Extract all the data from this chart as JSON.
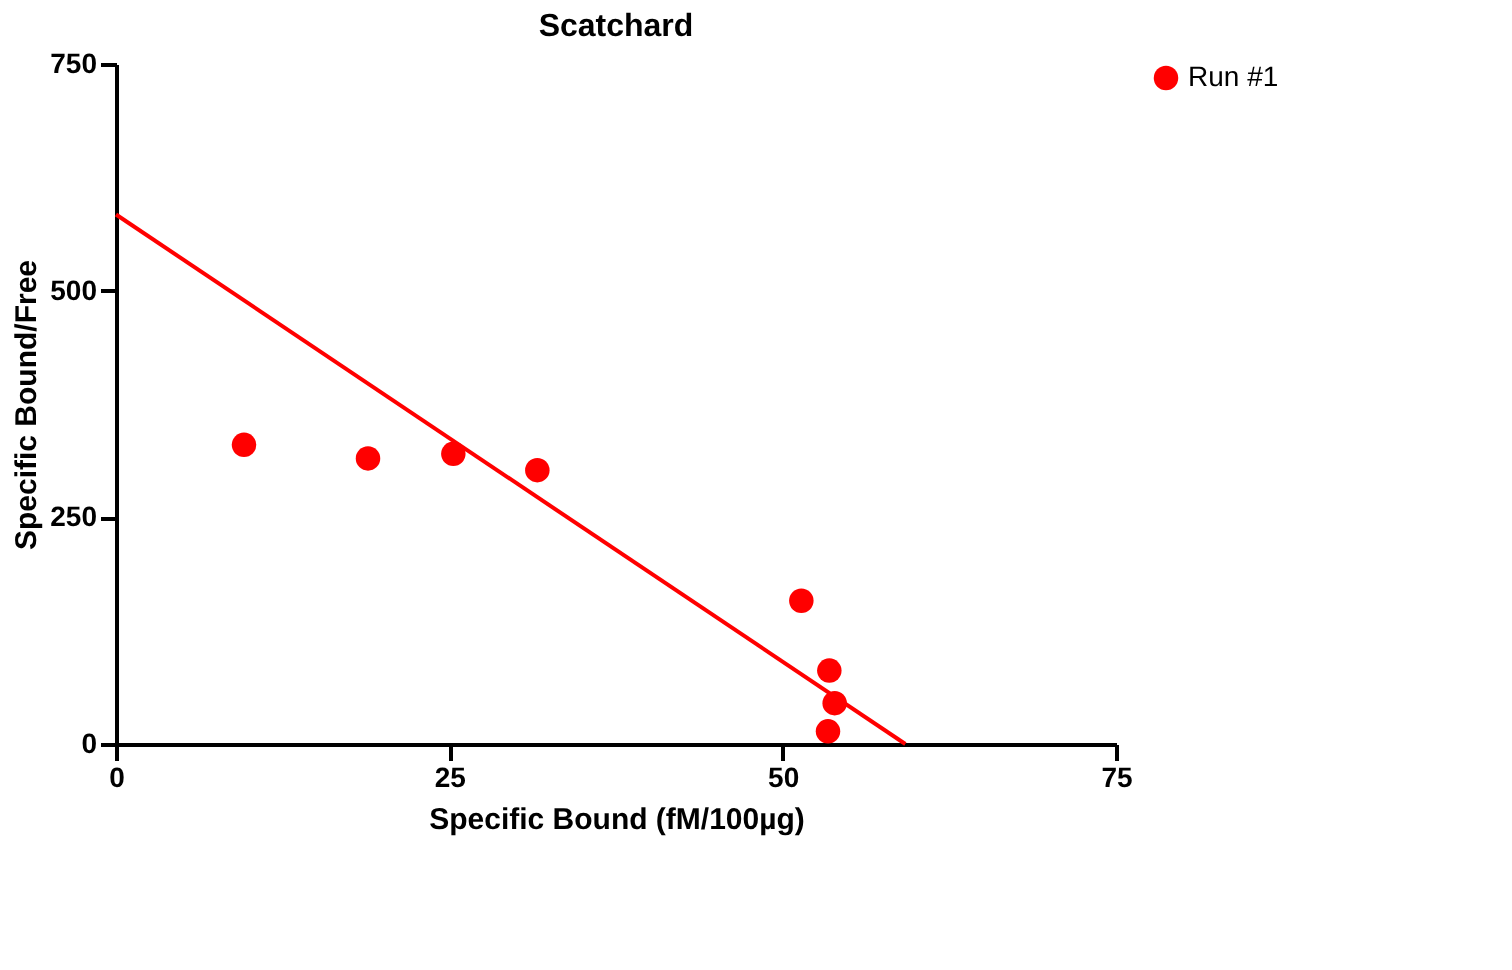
{
  "chart_data": {
    "type": "scatter",
    "title": "Scatchard",
    "xlabel": "Specific Bound (fM/100µg)",
    "ylabel": "Specific Bound/Free",
    "xlim": [
      0,
      75
    ],
    "xticks": [
      0,
      25,
      50,
      75
    ],
    "ylim": [
      0,
      750
    ],
    "yticks": [
      0,
      250,
      500,
      750
    ],
    "grid": false,
    "legend": "right",
    "series": [
      {
        "name": "Run #1",
        "color": "#ff0000",
        "marker": "circle",
        "x": [
          9.6,
          18.9,
          25.3,
          31.6,
          51.4,
          53.5,
          53.9,
          53.4
        ],
        "values": [
          330,
          315,
          320,
          302,
          158,
          81,
          45,
          14
        ]
      },
      {
        "type": "line",
        "color": "#ff0000",
        "line_style": "solid",
        "x": [
          0,
          59.2
        ],
        "values": [
          584,
          0
        ]
      }
    ]
  }
}
